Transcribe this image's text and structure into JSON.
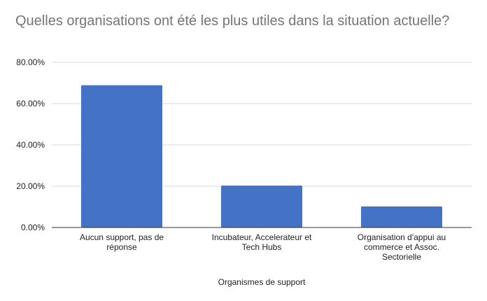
{
  "chart_data": {
    "type": "bar",
    "title": "Quelles organisations ont été les plus utiles dans la situation actuelle?",
    "xlabel": "Organismes de support",
    "ylabel": "",
    "ylim": [
      0,
      80
    ],
    "grid": true,
    "legend": "none",
    "y_ticks": [
      "0.00%",
      "20.00%",
      "40.00%",
      "60.00%",
      "80.00%"
    ],
    "categories": [
      [
        "Aucun support, pas de",
        "réponse"
      ],
      [
        "Incubateur, Accelerateur et",
        "Tech Hubs"
      ],
      [
        "Organisation d'appui au",
        "commerce et Assoc.",
        "Sectorielle"
      ]
    ],
    "values": [
      68.9,
      20.3,
      10.2
    ],
    "bar_color": "#4472c4"
  }
}
